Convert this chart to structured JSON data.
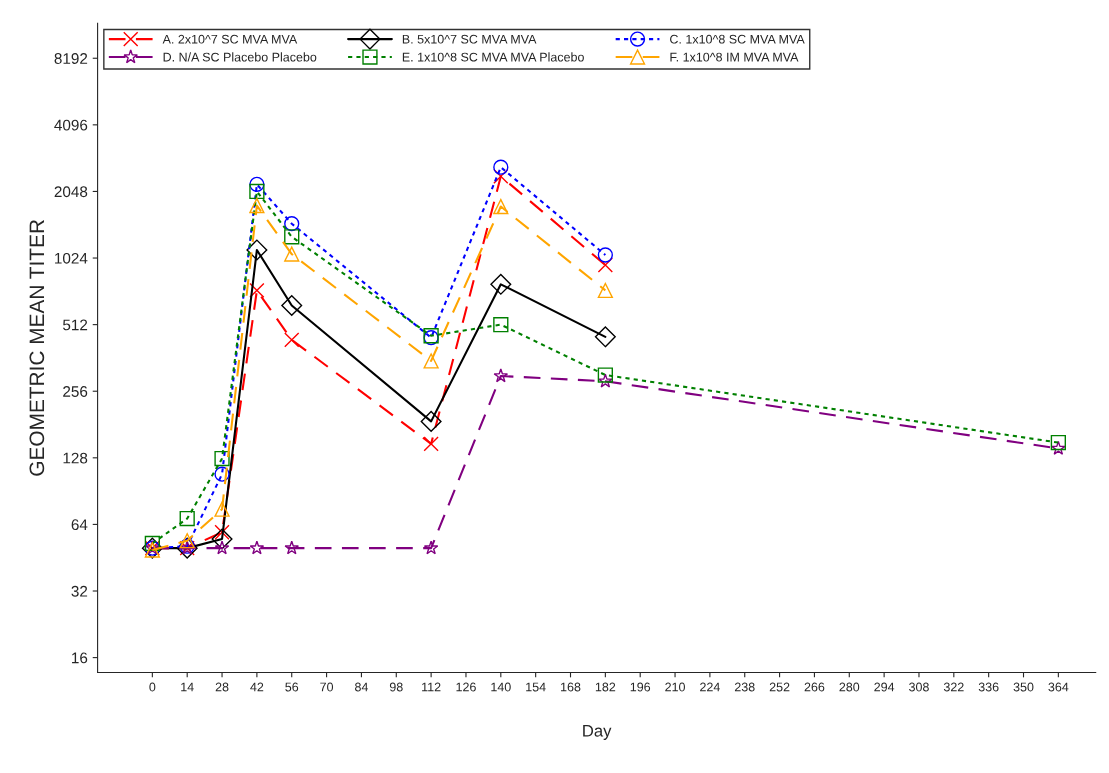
{
  "chart_data": {
    "type": "line",
    "xlabel": "Day",
    "ylabel": "GEOMETRIC MEAN TITER",
    "log": "y",
    "x": [
      0,
      14,
      28,
      42,
      56,
      112,
      140,
      182,
      364
    ],
    "xlim": [
      -22,
      379
    ],
    "xticks": [
      0,
      14,
      28,
      42,
      56,
      70,
      84,
      98,
      112,
      126,
      140,
      154,
      168,
      182,
      196,
      210,
      224,
      238,
      252,
      266,
      280,
      294,
      308,
      322,
      336,
      350,
      364
    ],
    "ylim": [
      13.7,
      11800
    ],
    "yticks": [
      16,
      32,
      64,
      128,
      256,
      512,
      1024,
      2048,
      4096,
      8192
    ],
    "grid": false,
    "legend": "top",
    "series": [
      {
        "name": "A. 2x10^7 SC MVA MVA",
        "color": "#ff0000",
        "marker": "cross",
        "line_style": "dashed",
        "values": [
          50,
          50,
          59,
          731,
          437,
          148,
          2397,
          952,
          null
        ]
      },
      {
        "name": "B. 5x10^7 SC MVA MVA",
        "color": "#000000",
        "marker": "diamond",
        "line_style": "solid",
        "values": [
          50,
          50,
          55,
          1114,
          625,
          187,
          779,
          451,
          null
        ]
      },
      {
        "name": "C. 1x10^8 SC MVA MVA",
        "color": "#0000ff",
        "marker": "circle",
        "line_style": "dotted",
        "values": [
          50,
          51,
          108,
          2205,
          1464,
          447,
          2635,
          1057,
          null
        ]
      },
      {
        "name": "D. N/A SC Placebo Placebo",
        "color": "#800080",
        "marker": "star",
        "line_style": "dashed",
        "values": [
          50,
          50,
          50,
          50,
          50,
          50,
          300,
          284,
          141
        ]
      },
      {
        "name": "E. 1x10^8 SC MVA MVA Placebo",
        "color": "#008000",
        "marker": "square",
        "line_style": "dotted",
        "values": [
          52.5,
          68,
          127,
          2048,
          1277,
          456,
          512,
          303,
          150
        ]
      },
      {
        "name": "F. 1x10^8 IM MVA MVA",
        "color": "#ffa500",
        "marker": "triangle",
        "line_style": "dashed",
        "values": [
          49,
          54,
          75,
          1768,
          1067,
          351,
          1750,
          731,
          null
        ]
      }
    ]
  }
}
